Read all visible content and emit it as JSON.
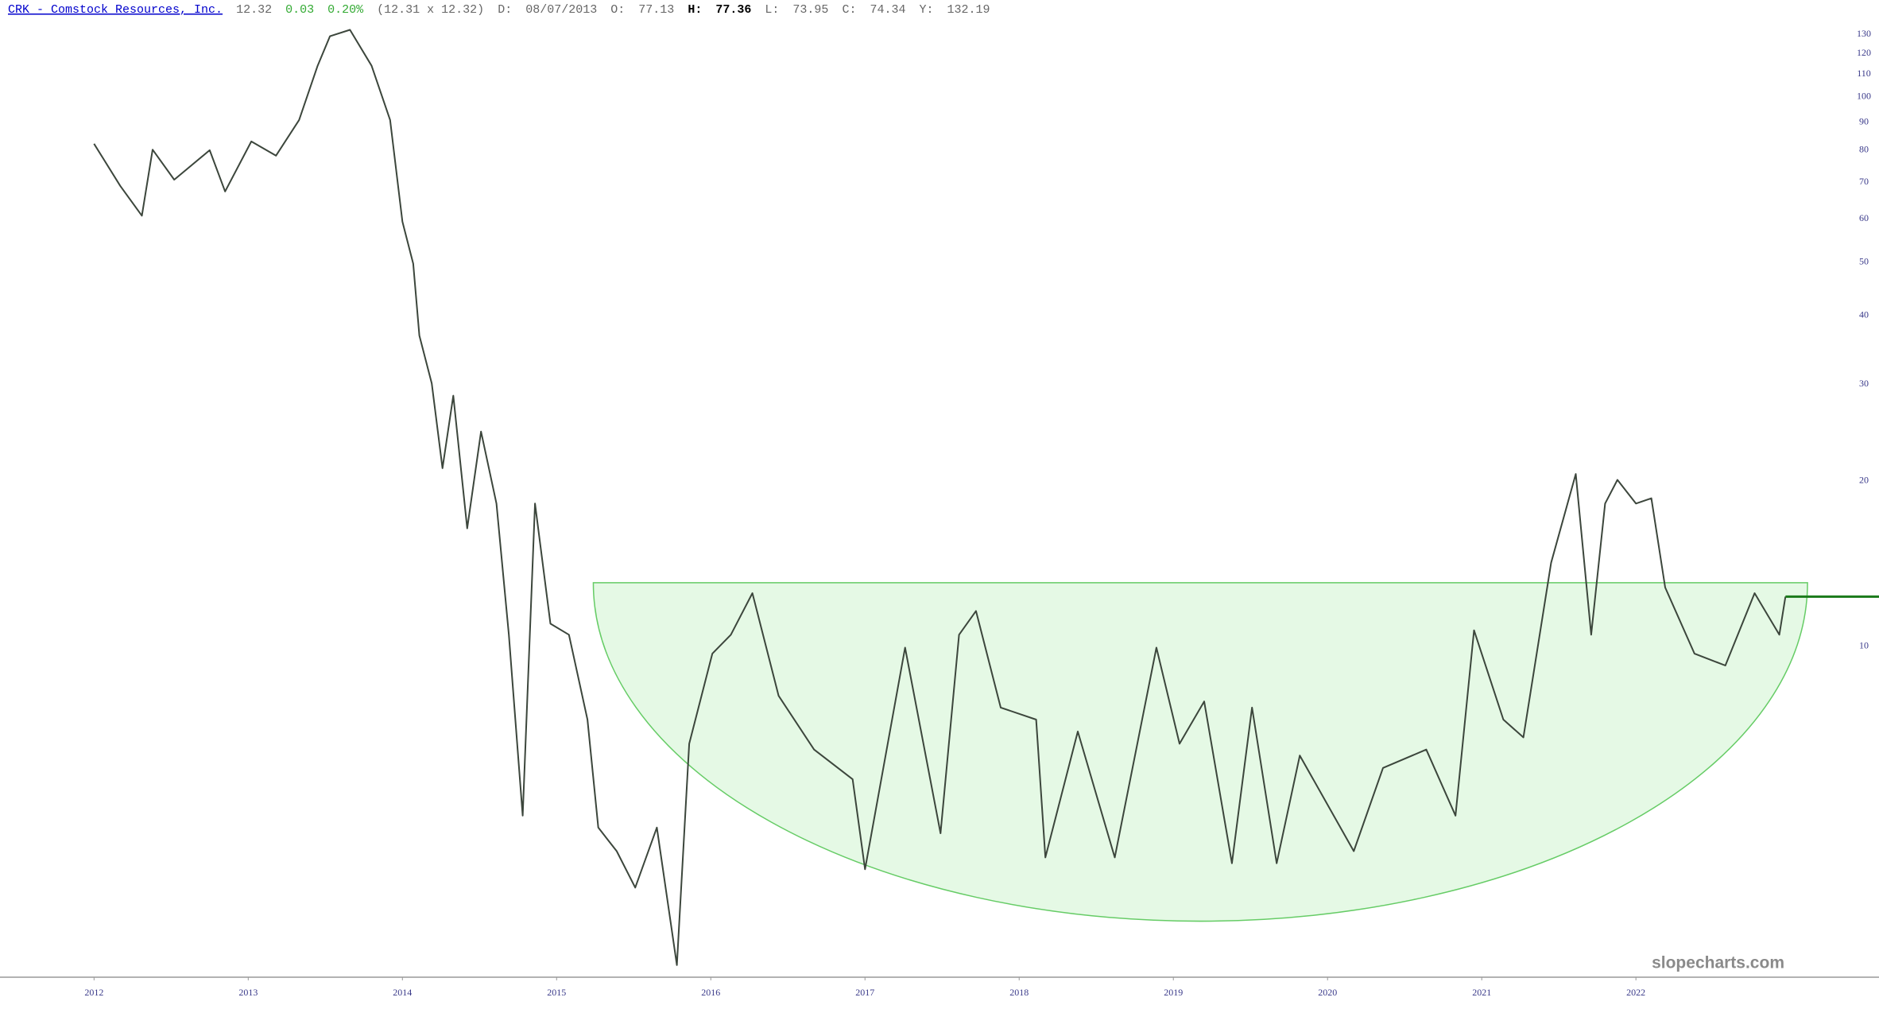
{
  "header": {
    "symbol_link": "CRK - Comstock Resources, Inc.",
    "last": "12.32",
    "change": "0.03",
    "change_pct": "0.20%",
    "bid_ask": "(12.31 x 12.32)",
    "date_label": "D:",
    "date": "08/07/2013",
    "open_label": "O:",
    "open": "77.13",
    "high_label": "H:",
    "high": "77.36",
    "low_label": "L:",
    "low": "73.95",
    "close_label": "C:",
    "close": "74.34",
    "year_label": "Y:",
    "year_value": "132.19"
  },
  "watermark": "slopecharts.com",
  "chart_data": {
    "type": "line",
    "ylog": true,
    "grid": false,
    "xlim": [
      2011.39,
      2023.36
    ],
    "ylim": [
      2.5,
      140
    ],
    "xticks": [
      2012,
      2013,
      2014,
      2015,
      2016,
      2017,
      2018,
      2019,
      2020,
      2021,
      2022
    ],
    "yticks": [
      10,
      20,
      30,
      40,
      50,
      60,
      70,
      80,
      90,
      100,
      110,
      120,
      130
    ],
    "series": [
      {
        "name": "CRK",
        "color": "#3c463c",
        "x": [
          2012.0,
          2012.17,
          2012.31,
          2012.38,
          2012.52,
          2012.75,
          2012.85,
          2013.02,
          2013.18,
          2013.33,
          2013.45,
          2013.53,
          2013.66,
          2013.8,
          2013.92,
          2014.0,
          2014.07,
          2014.11,
          2014.19,
          2014.26,
          2014.33,
          2014.42,
          2014.51,
          2014.61,
          2014.69,
          2014.78,
          2014.86,
          2014.96,
          2015.08,
          2015.2,
          2015.27,
          2015.39,
          2015.51,
          2015.65,
          2015.78,
          2015.86,
          2016.01,
          2016.13,
          2016.27,
          2016.44,
          2016.67,
          2016.92,
          2017.0,
          2017.26,
          2017.49,
          2017.61,
          2017.72,
          2017.88,
          2018.11,
          2018.17,
          2018.38,
          2018.62,
          2018.89,
          2019.04,
          2019.2,
          2019.38,
          2019.51,
          2019.67,
          2019.82,
          2020.17,
          2020.36,
          2020.64,
          2020.83,
          2020.95,
          2021.14,
          2021.27,
          2021.45,
          2021.61,
          2021.71,
          2021.8,
          2021.88,
          2022.0,
          2022.1,
          2022.19,
          2022.38,
          2022.58,
          2022.77,
          2022.93,
          2022.97
        ],
        "values": [
          82.2,
          68.9,
          60.8,
          80.2,
          70.7,
          80,
          67.3,
          83,
          78.2,
          90.8,
          114,
          129,
          132.5,
          114,
          90.8,
          59.3,
          49.7,
          36.8,
          30.1,
          21.1,
          28.6,
          16.4,
          24.6,
          18.2,
          10.5,
          4.92,
          18.2,
          11.0,
          10.5,
          7.36,
          4.68,
          4.24,
          3.64,
          4.68,
          2.63,
          6.65,
          9.7,
          10.5,
          12.5,
          8.13,
          6.49,
          5.73,
          3.93,
          9.95,
          4.57,
          10.5,
          11.6,
          7.74,
          7.36,
          4.13,
          7.0,
          4.13,
          9.95,
          6.65,
          7.94,
          4.03,
          7.74,
          4.03,
          6.33,
          4.24,
          6.01,
          6.49,
          4.92,
          10.7,
          7.36,
          6.83,
          14.2,
          20.6,
          10.5,
          18.2,
          20.1,
          18.2,
          18.6,
          12.8,
          9.7,
          9.23,
          12.5,
          10.5,
          12.32
        ]
      }
    ]
  }
}
